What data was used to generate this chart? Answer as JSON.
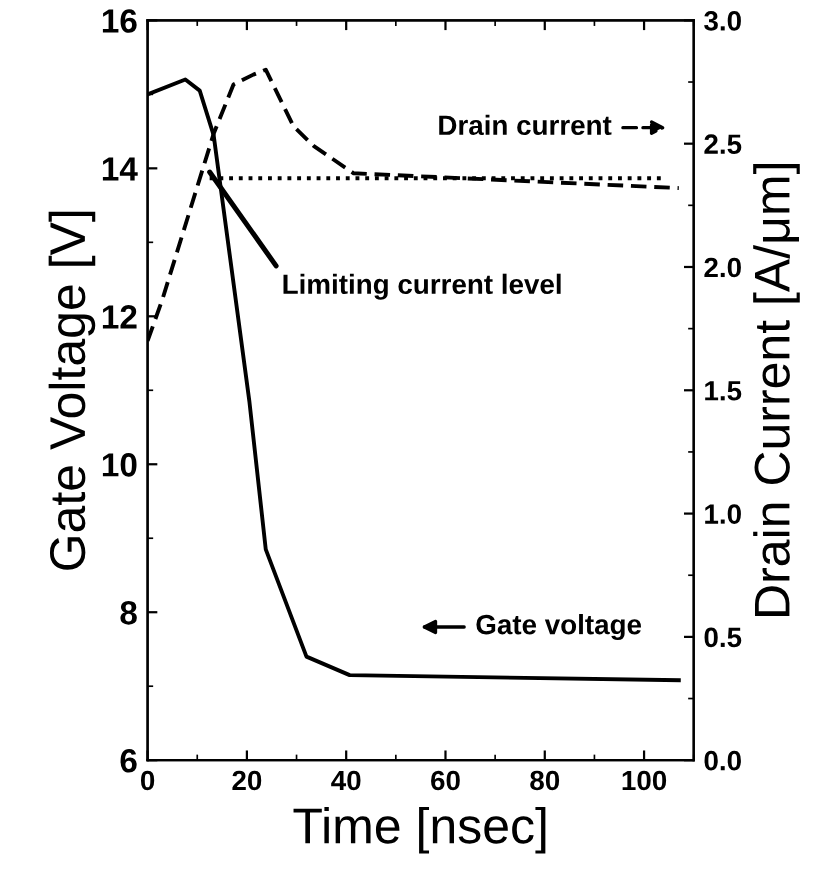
{
  "chart_data": {
    "type": "line",
    "xlabel": "Time [nsec]",
    "ylabel": "Gate Voltage [V]",
    "y2label": "Drain Current [A/μm]",
    "series": [
      {
        "name": "Gate voltage",
        "color": "#000000",
        "line_style": "solid",
        "x": [
          0,
          7.6,
          10.5,
          13.3,
          20.5,
          23.8,
          32,
          40.7,
          107
        ],
        "values": [
          15.0,
          15.2,
          15.05,
          14.45,
          10.85,
          8.85,
          7.4,
          7.15,
          7.08
        ]
      },
      {
        "name": "Drain current",
        "color": "#000000",
        "line_style": "dashed",
        "axis": "y2",
        "x": [
          0,
          3,
          13.3,
          17.3,
          21.3,
          23.8,
          29.4,
          33.5,
          41.5,
          107
        ],
        "values": [
          1.7,
          1.87,
          2.54,
          2.74,
          2.78,
          2.8,
          2.57,
          2.49,
          2.38,
          2.32
        ]
      },
      {
        "color": "#000000",
        "line_style": "dotted",
        "axis": "y2",
        "x": [
          12.5,
          104
        ],
        "values": [
          2.36,
          2.36
        ]
      }
    ],
    "annotations": [
      {
        "text": "Limiting current level",
        "x": 12.5,
        "y": 13.95
      }
    ],
    "xlim": [
      0,
      110
    ],
    "xticks": [
      0,
      20,
      40,
      60,
      80,
      100
    ],
    "ylim": [
      6,
      16
    ],
    "yticks": [
      6,
      8,
      10,
      12,
      14,
      16
    ],
    "y2lim": [
      0,
      3
    ],
    "y2ticks": [
      {
        "value": 0,
        "label": "0.0"
      },
      {
        "value": 0.5,
        "label": "0.5"
      },
      {
        "value": 1,
        "label": "1.0"
      },
      {
        "value": 1.5,
        "label": "1.5"
      },
      {
        "value": 2,
        "label": "2.0"
      },
      {
        "value": 2.5,
        "label": "2.5"
      },
      {
        "value": 3,
        "label": "3.0"
      }
    ],
    "legend": "right",
    "grid": false
  }
}
